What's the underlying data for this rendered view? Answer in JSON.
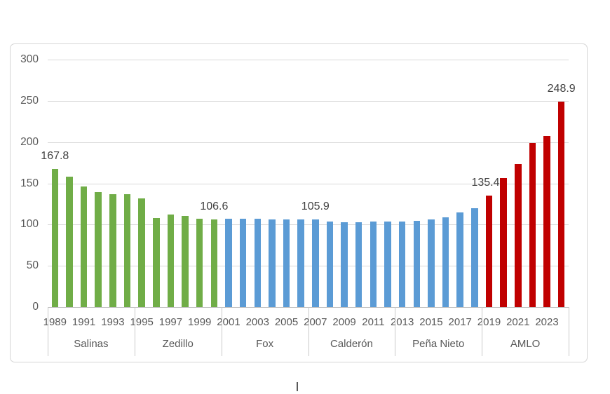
{
  "chart_data": {
    "type": "bar",
    "title": "",
    "ylim": [
      0,
      300
    ],
    "yticks": [
      0,
      50,
      100,
      150,
      200,
      250,
      300
    ],
    "grid": true,
    "legend": false,
    "xticklabels": [
      "1989",
      "1991",
      "1993",
      "1995",
      "1997",
      "1999",
      "2001",
      "2003",
      "2005",
      "2007",
      "2009",
      "2011",
      "2013",
      "2015",
      "2017",
      "2019",
      "2021",
      "2023"
    ],
    "groups": [
      {
        "label": "Salinas",
        "color": "#70AD47",
        "years": [
          1989,
          1990,
          1991,
          1992,
          1993,
          1994
        ],
        "values": [
          167.8,
          158.5,
          146.5,
          139,
          137,
          136.5
        ]
      },
      {
        "label": "Zedillo",
        "color": "#70AD47",
        "years": [
          1995,
          1996,
          1997,
          1998,
          1999,
          2000
        ],
        "values": [
          131.5,
          108,
          112,
          110.5,
          107.5,
          106.6
        ]
      },
      {
        "label": "Fox",
        "color": "#5B9BD5",
        "years": [
          2001,
          2002,
          2003,
          2004,
          2005,
          2006
        ],
        "values": [
          107,
          107.5,
          107,
          106.5,
          106.5,
          106
        ]
      },
      {
        "label": "Calderón",
        "color": "#5B9BD5",
        "years": [
          2007,
          2008,
          2009,
          2010,
          2011,
          2012
        ],
        "values": [
          105.9,
          103.5,
          103,
          103,
          103.5,
          104
        ]
      },
      {
        "label": "Peña Nieto",
        "color": "#5B9BD5",
        "years": [
          2013,
          2014,
          2015,
          2016,
          2017,
          2018
        ],
        "values": [
          104,
          104.5,
          106.5,
          109,
          114.5,
          119.5
        ]
      },
      {
        "label": "AMLO",
        "color": "#C00000",
        "years": [
          2019,
          2020,
          2021,
          2022,
          2023,
          2024
        ],
        "values": [
          135.4,
          156.5,
          173,
          199,
          207,
          248.9
        ]
      }
    ],
    "data_labels": [
      {
        "year": 1989,
        "text": "167.8"
      },
      {
        "year": 2000,
        "text": "106.6"
      },
      {
        "year": 2007,
        "text": "105.9"
      },
      {
        "year": 2019,
        "text": "135.4"
      },
      {
        "year": 2024,
        "text": "248.9"
      }
    ]
  },
  "colors": {
    "green": "#70AD47",
    "blue": "#5B9BD5",
    "red": "#C00000",
    "gridline": "#D9D9D9",
    "axis_line": "#BFBFBF",
    "tick_text": "#595959",
    "data_label_text": "#404040",
    "frame_border": "#D6D6D6"
  }
}
